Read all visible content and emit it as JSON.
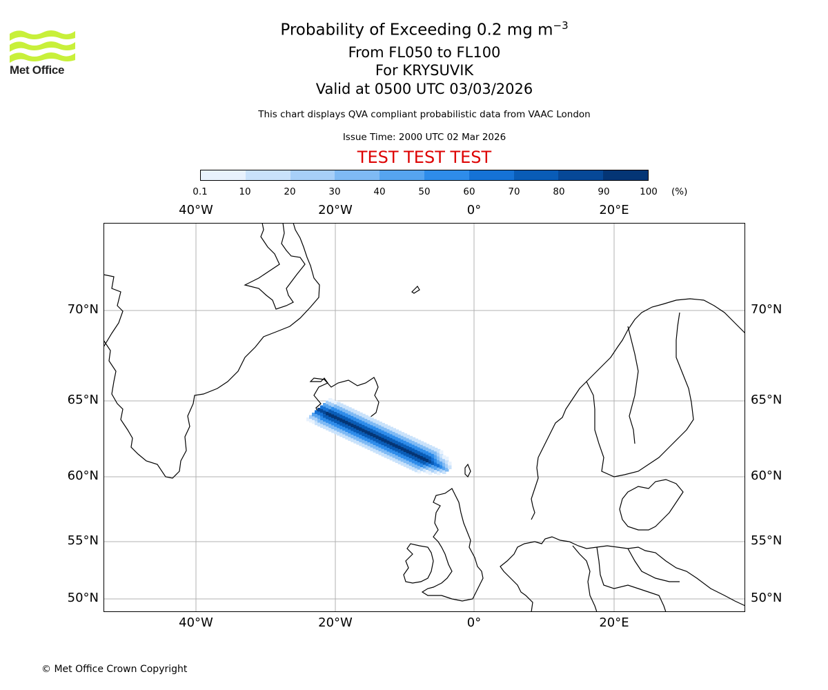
{
  "header": {
    "logo_text": "Met Office",
    "title_prefix": "Probability of Exceeding 0.2 mg m",
    "title_sup": "−3",
    "level_range": "From FL050 to FL100",
    "volcano": "For KRYSUVIK",
    "valid_time": "Valid at 0500 UTC 03/03/2026",
    "description": "This chart displays QVA compliant probabilistic data from VAAC London",
    "issue_time": "Issue Time: 2000 UTC 02 Mar 2026",
    "test_banner": "TEST TEST TEST"
  },
  "colorbar": {
    "ticks": [
      "0.1",
      "10",
      "20",
      "30",
      "40",
      "50",
      "60",
      "70",
      "80",
      "90",
      "100"
    ],
    "unit": "(%)",
    "colors": [
      "#e8f2fd",
      "#c9e2fb",
      "#a7cff8",
      "#7fbaf4",
      "#56a4f0",
      "#2e8cea",
      "#1572d6",
      "#095cb7",
      "#064897",
      "#043575"
    ]
  },
  "map": {
    "lon_labels": [
      "40°W",
      "20°W",
      "0°",
      "20°E"
    ],
    "lat_labels": [
      "70°N",
      "65°N",
      "60°N",
      "55°N",
      "50°N"
    ],
    "gridline_color": "#b0b0b0"
  },
  "footer": {
    "copyright": "© Met Office Crown Copyright"
  }
}
